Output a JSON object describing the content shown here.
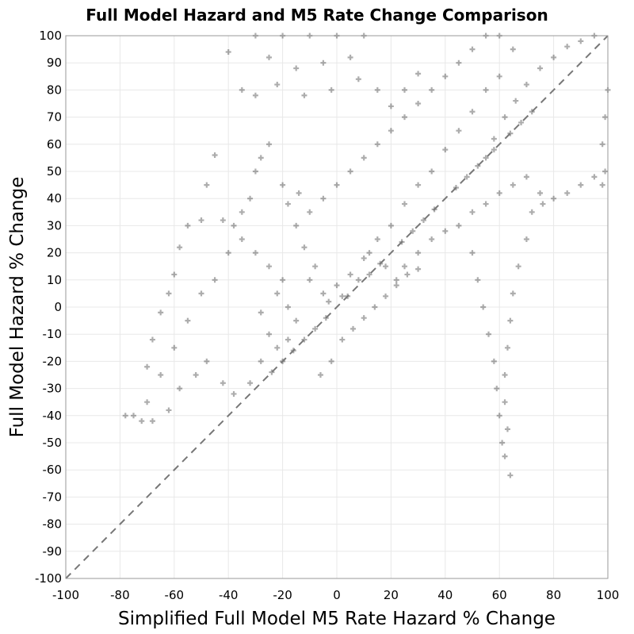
{
  "chart_data": {
    "type": "scatter",
    "title": "Full Model Hazard and M5 Rate Change Comparison",
    "xlabel": "Simplified Full Model M5 Rate Hazard % Change",
    "ylabel": "Full Model Hazard % Change",
    "xlim": [
      -100,
      100
    ],
    "ylim": [
      -100,
      100
    ],
    "xticks": [
      -100,
      -80,
      -60,
      -40,
      -20,
      0,
      20,
      40,
      60,
      80,
      100
    ],
    "yticks": [
      -100,
      -90,
      -80,
      -70,
      -60,
      -50,
      -40,
      -30,
      -20,
      -10,
      0,
      10,
      20,
      30,
      40,
      50,
      60,
      70,
      80,
      90,
      100
    ],
    "marker": "plus",
    "marker_color": "#000000",
    "reference_line": {
      "style": "dashed",
      "color": "#777777",
      "from": [
        -100,
        -100
      ],
      "to": [
        100,
        100
      ]
    },
    "series": [
      {
        "name": "points",
        "points": [
          [
            -20,
            10
          ],
          [
            -22,
            5
          ],
          [
            -18,
            0
          ],
          [
            -15,
            -5
          ],
          [
            -25,
            15
          ],
          [
            -10,
            10
          ],
          [
            -5,
            5
          ],
          [
            0,
            8
          ],
          [
            5,
            12
          ],
          [
            10,
            18
          ],
          [
            -30,
            20
          ],
          [
            -28,
            -2
          ],
          [
            -12,
            22
          ],
          [
            -8,
            15
          ],
          [
            -3,
            2
          ],
          [
            2,
            4
          ],
          [
            8,
            10
          ],
          [
            -35,
            25
          ],
          [
            -40,
            20
          ],
          [
            -45,
            10
          ],
          [
            -50,
            5
          ],
          [
            -55,
            -5
          ],
          [
            -60,
            -15
          ],
          [
            -65,
            -25
          ],
          [
            -70,
            -35
          ],
          [
            -75,
            -40
          ],
          [
            -78,
            -40
          ],
          [
            -72,
            -42
          ],
          [
            -68,
            -42
          ],
          [
            -62,
            -38
          ],
          [
            -58,
            -30
          ],
          [
            -52,
            -25
          ],
          [
            -48,
            -20
          ],
          [
            -42,
            -28
          ],
          [
            -38,
            -32
          ],
          [
            -32,
            -28
          ],
          [
            -28,
            -20
          ],
          [
            -25,
            -10
          ],
          [
            -22,
            -15
          ],
          [
            -18,
            -12
          ],
          [
            -15,
            30
          ],
          [
            -10,
            35
          ],
          [
            -5,
            40
          ],
          [
            0,
            45
          ],
          [
            5,
            50
          ],
          [
            10,
            55
          ],
          [
            15,
            60
          ],
          [
            20,
            65
          ],
          [
            25,
            70
          ],
          [
            30,
            75
          ],
          [
            35,
            80
          ],
          [
            40,
            85
          ],
          [
            45,
            90
          ],
          [
            50,
            95
          ],
          [
            55,
            100
          ],
          [
            60,
            100
          ],
          [
            65,
            95
          ],
          [
            60,
            85
          ],
          [
            55,
            80
          ],
          [
            50,
            72
          ],
          [
            45,
            65
          ],
          [
            40,
            58
          ],
          [
            35,
            50
          ],
          [
            30,
            45
          ],
          [
            25,
            38
          ],
          [
            20,
            30
          ],
          [
            15,
            25
          ],
          [
            12,
            20
          ],
          [
            18,
            15
          ],
          [
            22,
            10
          ],
          [
            25,
            15
          ],
          [
            30,
            20
          ],
          [
            35,
            25
          ],
          [
            40,
            28
          ],
          [
            45,
            30
          ],
          [
            50,
            35
          ],
          [
            55,
            38
          ],
          [
            60,
            42
          ],
          [
            65,
            45
          ],
          [
            70,
            48
          ],
          [
            -30,
            50
          ],
          [
            -28,
            55
          ],
          [
            -25,
            60
          ],
          [
            -20,
            45
          ],
          [
            -32,
            40
          ],
          [
            -35,
            35
          ],
          [
            -38,
            30
          ],
          [
            -42,
            32
          ],
          [
            -18,
            38
          ],
          [
            -14,
            42
          ],
          [
            50,
            20
          ],
          [
            52,
            10
          ],
          [
            54,
            0
          ],
          [
            56,
            -10
          ],
          [
            58,
            -20
          ],
          [
            59,
            -30
          ],
          [
            60,
            -40
          ],
          [
            61,
            -50
          ],
          [
            62,
            -55
          ],
          [
            64,
            -62
          ],
          [
            63,
            -45
          ],
          [
            62,
            -35
          ],
          [
            62,
            -25
          ],
          [
            63,
            -15
          ],
          [
            64,
            -5
          ],
          [
            65,
            5
          ],
          [
            67,
            15
          ],
          [
            70,
            25
          ],
          [
            72,
            35
          ],
          [
            75,
            42
          ],
          [
            55,
            55
          ],
          [
            58,
            62
          ],
          [
            62,
            70
          ],
          [
            66,
            76
          ],
          [
            70,
            82
          ],
          [
            75,
            88
          ],
          [
            80,
            92
          ],
          [
            85,
            96
          ],
          [
            90,
            98
          ],
          [
            95,
            100
          ],
          [
            98,
            60
          ],
          [
            99,
            70
          ],
          [
            100,
            80
          ],
          [
            99,
            50
          ],
          [
            98,
            45
          ],
          [
            95,
            48
          ],
          [
            90,
            45
          ],
          [
            85,
            42
          ],
          [
            80,
            40
          ],
          [
            76,
            38
          ],
          [
            -20,
            100
          ],
          [
            -10,
            100
          ],
          [
            0,
            100
          ],
          [
            10,
            100
          ],
          [
            -30,
            100
          ],
          [
            -25,
            92
          ],
          [
            -15,
            88
          ],
          [
            -5,
            90
          ],
          [
            5,
            92
          ],
          [
            -35,
            80
          ],
          [
            -30,
            78
          ],
          [
            -22,
            82
          ],
          [
            -12,
            78
          ],
          [
            -2,
            80
          ],
          [
            8,
            84
          ],
          [
            15,
            80
          ],
          [
            20,
            74
          ],
          [
            25,
            80
          ],
          [
            30,
            86
          ],
          [
            -40,
            94
          ],
          [
            -45,
            56
          ],
          [
            -48,
            45
          ],
          [
            -50,
            32
          ],
          [
            -55,
            30
          ],
          [
            -58,
            22
          ],
          [
            -60,
            12
          ],
          [
            -62,
            5
          ],
          [
            -65,
            -2
          ],
          [
            -68,
            -12
          ],
          [
            -70,
            -22
          ],
          [
            -6,
            -25
          ],
          [
            -2,
            -20
          ],
          [
            2,
            -12
          ],
          [
            6,
            -8
          ],
          [
            10,
            -4
          ],
          [
            14,
            0
          ],
          [
            18,
            4
          ],
          [
            22,
            8
          ],
          [
            26,
            12
          ],
          [
            30,
            14
          ],
          [
            -24,
            -24
          ],
          [
            -20,
            -20
          ],
          [
            -16,
            -16
          ],
          [
            -12,
            -12
          ],
          [
            -8,
            -8
          ],
          [
            -4,
            -4
          ],
          [
            4,
            4
          ],
          [
            12,
            12
          ],
          [
            16,
            16
          ],
          [
            24,
            24
          ],
          [
            28,
            28
          ],
          [
            32,
            32
          ],
          [
            36,
            36
          ],
          [
            44,
            44
          ],
          [
            48,
            48
          ],
          [
            52,
            52
          ],
          [
            58,
            58
          ],
          [
            64,
            64
          ],
          [
            68,
            68
          ],
          [
            72,
            72
          ]
        ]
      }
    ]
  }
}
